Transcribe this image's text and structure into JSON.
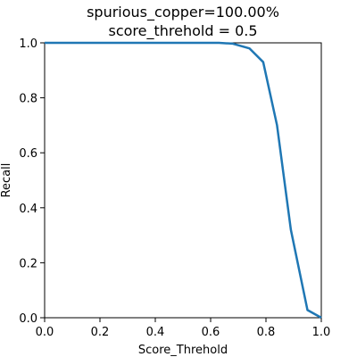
{
  "chart_data": {
    "type": "line",
    "title": [
      "spurious_copper=100.00%",
      "score_threhold = 0.5"
    ],
    "xlabel": "Score_Threhold",
    "ylabel": "Recall",
    "xlim": [
      0,
      1
    ],
    "ylim": [
      0,
      1
    ],
    "xticks": [
      "0.0",
      "0.2",
      "0.4",
      "0.6",
      "0.8",
      "1.0"
    ],
    "yticks": [
      "0.0",
      "0.2",
      "0.4",
      "0.6",
      "0.8",
      "1.0"
    ],
    "grid": false,
    "line_color": "#1f77b4",
    "series": [
      {
        "x": [
          0.0,
          0.05,
          0.1,
          0.2,
          0.3,
          0.4,
          0.5,
          0.6,
          0.63,
          0.68,
          0.74,
          0.79,
          0.84,
          0.89,
          0.95,
          1.0
        ],
        "values": [
          1.0,
          1.0,
          1.0,
          1.0,
          1.0,
          1.0,
          1.0,
          1.0,
          1.0,
          0.997,
          0.98,
          0.93,
          0.7,
          0.32,
          0.028,
          0.0
        ]
      }
    ]
  }
}
